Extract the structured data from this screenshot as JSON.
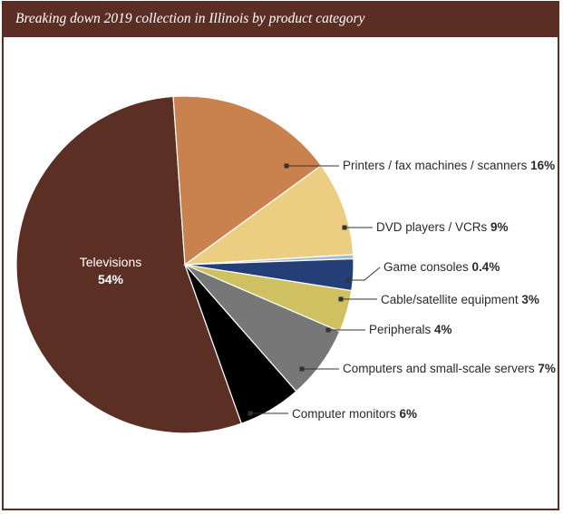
{
  "header": {
    "title": "Breaking down 2019 collection in Illinois by product category"
  },
  "chart_data": {
    "type": "pie",
    "title": "Breaking down 2019 collection in Illinois by product category",
    "slices": [
      {
        "label": "Televisions",
        "pct_text": "54%",
        "value": 54.0,
        "color": "#5c2f25"
      },
      {
        "label": "Printers / fax machines / scanners",
        "pct_text": "16%",
        "value": 16.0,
        "color": "#c9814d"
      },
      {
        "label": "DVD players / VCRs",
        "pct_text": "9%",
        "value": 9.0,
        "color": "#ecce82"
      },
      {
        "label": "Game consoles",
        "pct_text": "0.4%",
        "value": 0.4,
        "color": "#a3bcd6"
      },
      {
        "label": "Cable/satellite equipment",
        "pct_text": "3%",
        "value": 3.0,
        "color": "#243f77"
      },
      {
        "label": "Peripherals",
        "pct_text": "4%",
        "value": 4.0,
        "color": "#cfc061"
      },
      {
        "label": "Computers and small-scale servers",
        "pct_text": "7%",
        "value": 7.0,
        "color": "#777777"
      },
      {
        "label": "Computer monitors",
        "pct_text": "6%",
        "value": 6.0,
        "color": "#000000"
      }
    ]
  }
}
